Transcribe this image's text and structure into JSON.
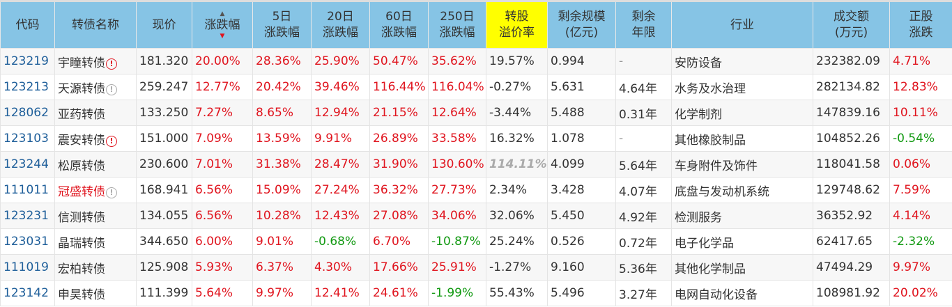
{
  "headers": {
    "code": "代码",
    "name": "转债名称",
    "price": "现价",
    "chg": "涨跌幅",
    "chg5a": "5日",
    "chg5b": "涨跌幅",
    "chg20a": "20日",
    "chg20b": "涨跌幅",
    "chg60a": "60日",
    "chg60b": "涨跌幅",
    "chg250a": "250日",
    "chg250b": "涨跌幅",
    "premA": "转股",
    "premB": "溢价率",
    "scaleA": "剩余规模",
    "scaleB": "(亿元)",
    "yearsA": "剩余",
    "yearsB": "年限",
    "industry": "行业",
    "volA": "成交额",
    "volB": "(万元)",
    "stockA": "正股",
    "stockB": "涨跌"
  },
  "rows": [
    {
      "code": "123219",
      "name": "宇瞳转债",
      "warn": "red",
      "price": "181.320",
      "chg": "20.00%",
      "c5": "28.36%",
      "c20": "25.90%",
      "c60": "50.47%",
      "c250": "35.62%",
      "prem": "19.57%",
      "scale": "0.994",
      "years": "-",
      "industry": "安防设备",
      "vol": "232382.09",
      "stock": "4.71%"
    },
    {
      "code": "123213",
      "name": "天源转债",
      "warn": "gray",
      "price": "259.247",
      "chg": "12.77%",
      "c5": "20.42%",
      "c20": "39.46%",
      "c60": "116.44%",
      "c250": "116.04%",
      "prem": "-0.27%",
      "scale": "5.631",
      "years": "4.64年",
      "industry": "水务及水治理",
      "vol": "282134.82",
      "stock": "12.83%"
    },
    {
      "code": "128062",
      "name": "亚药转债",
      "warn": "",
      "price": "133.250",
      "chg": "7.27%",
      "c5": "8.65%",
      "c20": "12.94%",
      "c60": "21.15%",
      "c250": "12.64%",
      "prem": "-3.44%",
      "scale": "5.488",
      "years": "0.31年",
      "industry": "化学制剂",
      "vol": "147839.16",
      "stock": "10.11%"
    },
    {
      "code": "123103",
      "name": "震安转债",
      "warn": "red",
      "price": "151.000",
      "chg": "7.09%",
      "c5": "13.59%",
      "c20": "9.91%",
      "c60": "26.89%",
      "c250": "33.58%",
      "prem": "16.32%",
      "scale": "1.078",
      "years": "-",
      "industry": "其他橡胶制品",
      "vol": "104852.26",
      "stock": "-0.54%"
    },
    {
      "code": "123244",
      "name": "松原转债",
      "warn": "",
      "price": "230.600",
      "chg": "7.01%",
      "c5": "31.38%",
      "c20": "28.47%",
      "c60": "31.90%",
      "c250": "130.60%",
      "prem": "114.11%",
      "premItalic": true,
      "scale": "4.099",
      "years": "5.64年",
      "industry": "车身附件及饰件",
      "vol": "118041.58",
      "stock": "0.06%"
    },
    {
      "code": "111011",
      "name": "冠盛转债",
      "nameRed": true,
      "warn": "gray",
      "price": "168.941",
      "chg": "6.56%",
      "c5": "15.09%",
      "c20": "27.24%",
      "c60": "36.32%",
      "c250": "27.73%",
      "prem": "2.34%",
      "scale": "3.428",
      "years": "4.07年",
      "industry": "底盘与发动机系统",
      "vol": "129748.62",
      "stock": "7.59%"
    },
    {
      "code": "123231",
      "name": "信测转债",
      "warn": "",
      "price": "134.055",
      "chg": "6.56%",
      "c5": "10.28%",
      "c20": "12.43%",
      "c60": "27.08%",
      "c250": "34.06%",
      "prem": "32.06%",
      "scale": "5.450",
      "years": "4.92年",
      "industry": "检测服务",
      "vol": "36352.92",
      "stock": "4.14%"
    },
    {
      "code": "123031",
      "name": "晶瑞转债",
      "warn": "",
      "price": "344.650",
      "chg": "6.00%",
      "c5": "9.01%",
      "c20": "-0.68%",
      "c60": "6.70%",
      "c250": "-10.87%",
      "prem": "25.24%",
      "scale": "0.526",
      "years": "0.72年",
      "industry": "电子化学品",
      "vol": "62417.65",
      "stock": "-2.32%"
    },
    {
      "code": "111019",
      "name": "宏柏转债",
      "warn": "",
      "price": "125.908",
      "chg": "5.93%",
      "c5": "6.37%",
      "c20": "4.30%",
      "c60": "17.66%",
      "c250": "25.91%",
      "prem": "-1.27%",
      "scale": "9.160",
      "years": "5.36年",
      "industry": "其他化学制品",
      "vol": "47494.29",
      "stock": "9.97%"
    },
    {
      "code": "123142",
      "name": "申昊转债",
      "warn": "",
      "price": "111.399",
      "chg": "5.64%",
      "c5": "9.97%",
      "c20": "12.41%",
      "c60": "24.61%",
      "c250": "-1.99%",
      "prem": "55.43%",
      "scale": "5.496",
      "years": "3.27年",
      "industry": "电网自动化设备",
      "vol": "108981.92",
      "stock": "20.02%"
    }
  ]
}
